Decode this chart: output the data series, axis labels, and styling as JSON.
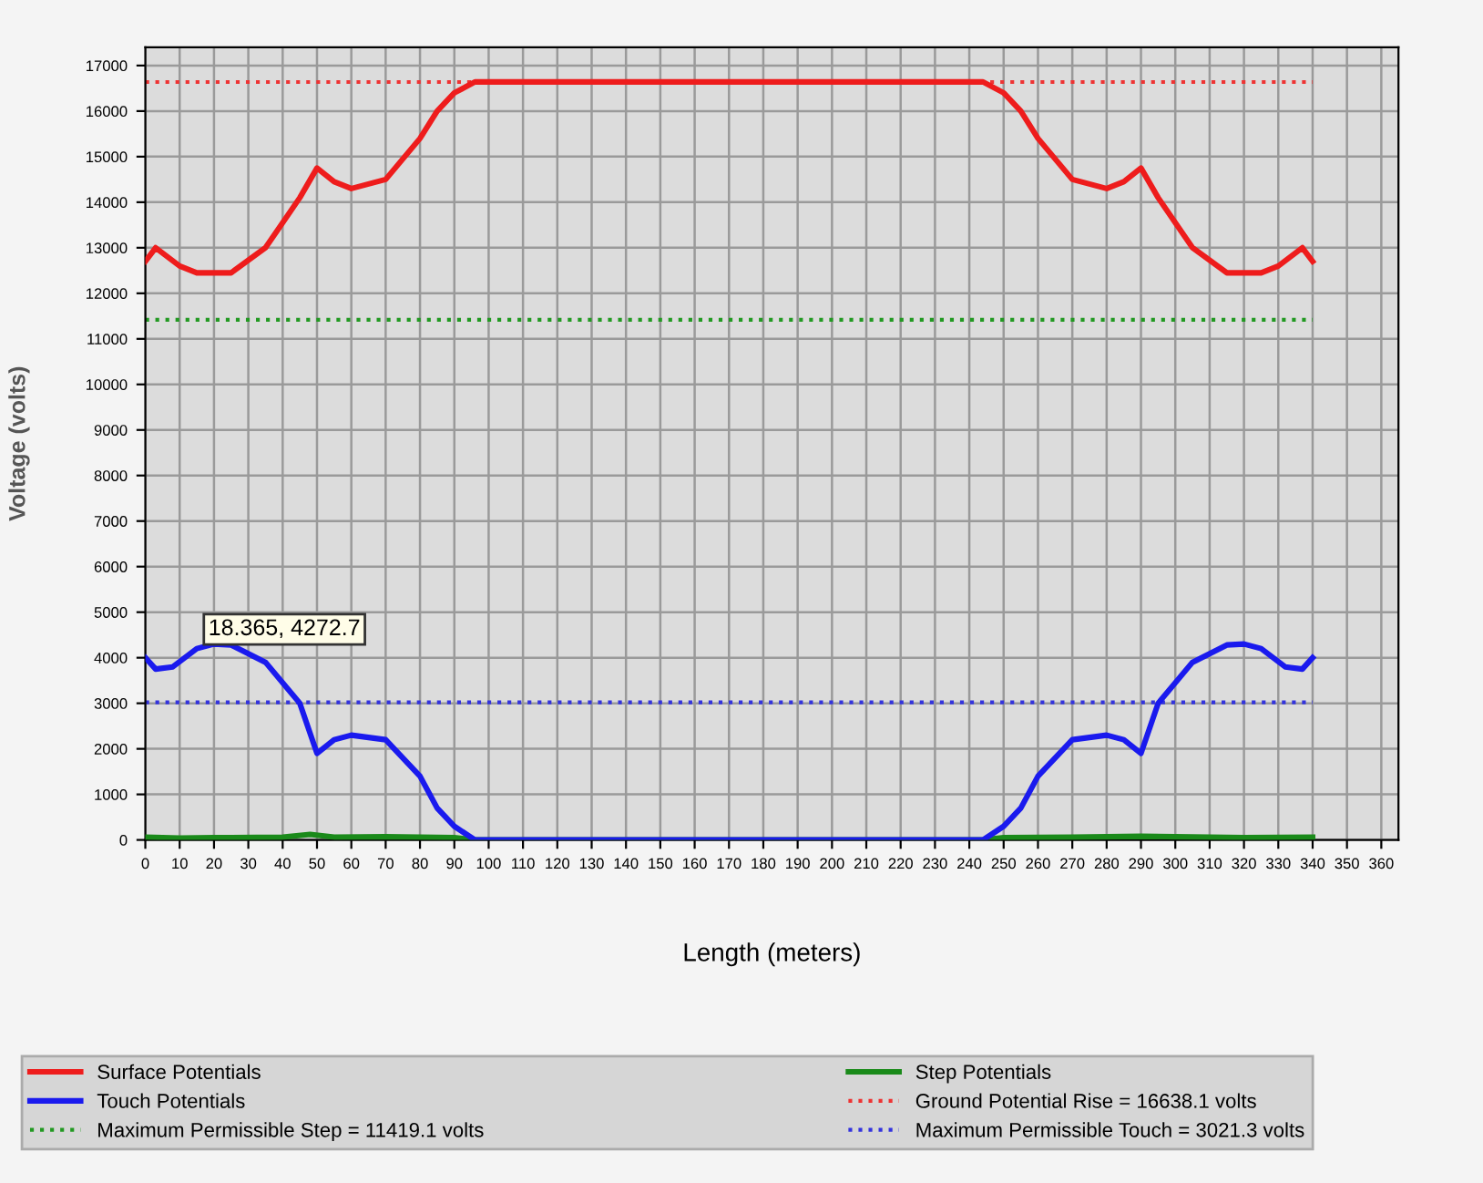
{
  "chart_data": {
    "type": "line",
    "xlabel": "Length (meters)",
    "ylabel": "Voltage (volts)",
    "xlim": [
      0,
      365
    ],
    "ylim": [
      0,
      17400
    ],
    "xticks": [
      0,
      10,
      20,
      30,
      40,
      50,
      60,
      70,
      80,
      90,
      100,
      110,
      120,
      130,
      140,
      150,
      160,
      170,
      180,
      190,
      200,
      210,
      220,
      230,
      240,
      250,
      260,
      270,
      280,
      290,
      300,
      310,
      320,
      330,
      340,
      350,
      360
    ],
    "yticks": [
      0,
      1000,
      2000,
      3000,
      4000,
      5000,
      6000,
      7000,
      8000,
      9000,
      10000,
      11000,
      12000,
      13000,
      14000,
      15000,
      16000,
      17000
    ],
    "grid": true,
    "legend": "bottom",
    "marker": "none",
    "line_style": "solid",
    "series": [
      {
        "name": "Surface Potentials",
        "color": "#ee1c1c",
        "x": [
          0,
          3,
          10,
          15,
          25,
          35,
          45,
          50,
          55,
          60,
          70,
          80,
          85,
          90,
          96,
          244,
          250,
          255,
          260,
          270,
          280,
          285,
          290,
          295,
          305,
          315,
          325,
          330,
          337,
          340
        ],
        "values": [
          12700,
          13000,
          12600,
          12450,
          12450,
          13000,
          14100,
          14750,
          14450,
          14300,
          14500,
          15400,
          16000,
          16400,
          16640,
          16640,
          16400,
          16000,
          15400,
          14500,
          14300,
          14450,
          14750,
          14100,
          13000,
          12450,
          12450,
          12600,
          13000,
          12700
        ]
      },
      {
        "name": "Step Potentials",
        "color": "#1a8a1a",
        "x": [
          0,
          10,
          20,
          40,
          48,
          55,
          70,
          90,
          96,
          244,
          250,
          270,
          290,
          300,
          320,
          340
        ],
        "values": [
          60,
          40,
          50,
          60,
          120,
          60,
          70,
          50,
          0,
          0,
          50,
          60,
          80,
          70,
          50,
          60
        ]
      },
      {
        "name": "Touch Potentials",
        "color": "#1a1aee",
        "x": [
          0,
          3,
          8,
          15,
          20,
          25,
          35,
          45,
          50,
          55,
          60,
          70,
          80,
          85,
          90,
          96,
          244,
          250,
          255,
          260,
          270,
          280,
          285,
          290,
          295,
          305,
          315,
          320,
          325,
          332,
          337,
          340
        ],
        "values": [
          4000,
          3750,
          3800,
          4200,
          4300,
          4280,
          3900,
          3000,
          1900,
          2200,
          2300,
          2200,
          1400,
          700,
          300,
          0,
          0,
          300,
          700,
          1400,
          2200,
          2300,
          2200,
          1900,
          3000,
          3900,
          4280,
          4300,
          4200,
          3800,
          3750,
          4000
        ]
      }
    ],
    "ref_lines": [
      {
        "axis": "y",
        "value": 16638.1,
        "label": "Ground Potential Rise = 16638.1 volts",
        "color": "#ee3333",
        "line_style": "dotted"
      },
      {
        "axis": "y",
        "value": 11419.1,
        "label": "Maximum Permissible Step = 11419.1 volts",
        "color": "#229922",
        "line_style": "dotted"
      },
      {
        "axis": "y",
        "value": 3021.3,
        "label": "Maximum Permissible Touch = 3021.3 volts",
        "color": "#3333dd",
        "line_style": "dotted"
      }
    ],
    "annotations": [
      {
        "text": "18.365, 4272.7",
        "x": 18.365,
        "y": 4272.7
      }
    ]
  }
}
